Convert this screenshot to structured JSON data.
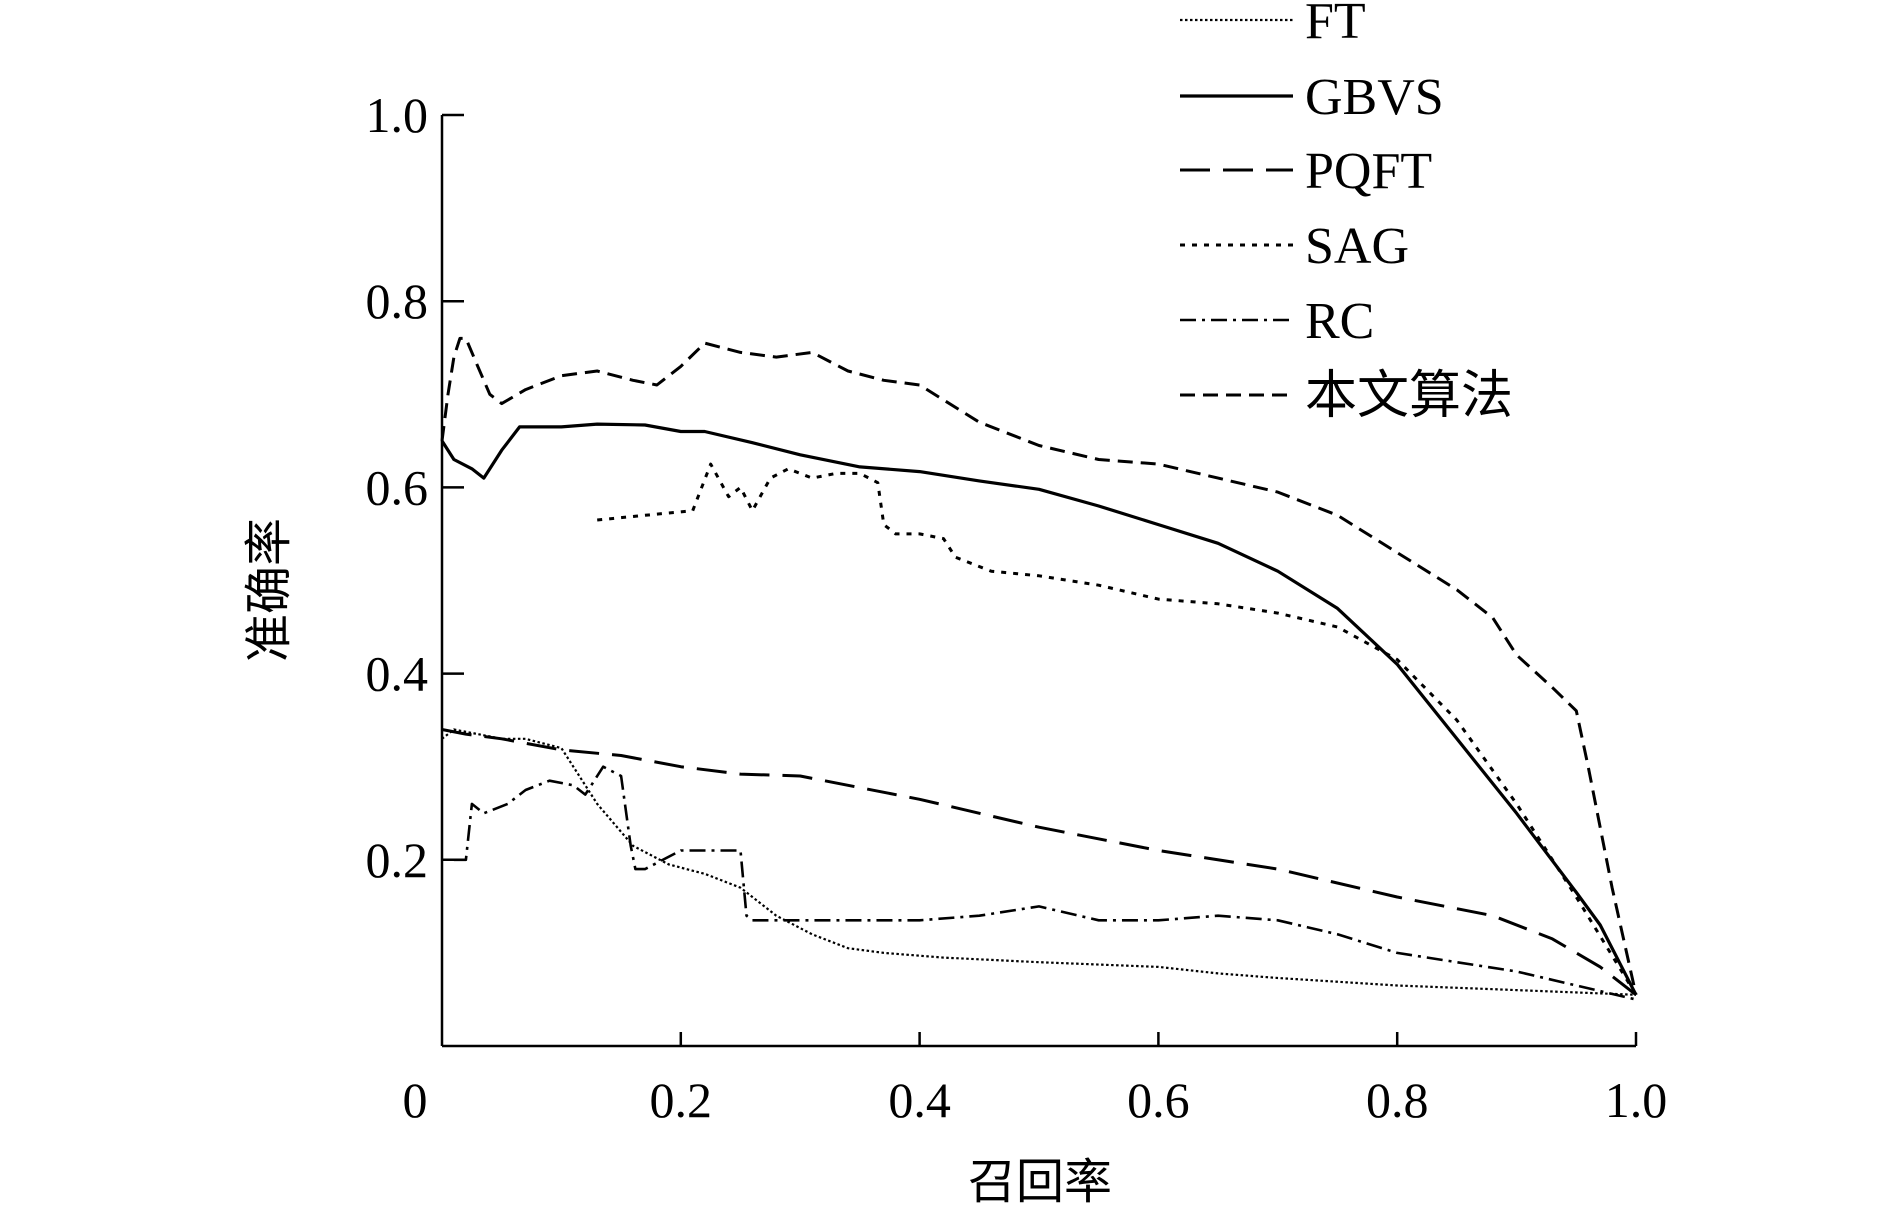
{
  "chart_data": {
    "type": "line",
    "title": "",
    "xlabel": "召回率",
    "ylabel": "准确率",
    "xlim": [
      0,
      1.0
    ],
    "ylim": [
      0,
      1.0
    ],
    "x_origin_label": "0",
    "x_ticks": [
      0.2,
      0.4,
      0.6,
      0.8,
      1.0
    ],
    "x_tick_labels": [
      "0.2",
      "0.4",
      "0.6",
      "0.8",
      "1.0"
    ],
    "y_ticks": [
      0.2,
      0.4,
      0.6,
      0.8,
      1.0
    ],
    "y_tick_labels": [
      "0.2",
      "0.4",
      "0.6",
      "0.8",
      "1.0"
    ],
    "grid": false,
    "legend_position": "top-right",
    "series": [
      {
        "name": "FT",
        "style": "fine-dotted",
        "x": [
          0.0,
          0.01,
          0.03,
          0.05,
          0.07,
          0.1,
          0.13,
          0.16,
          0.19,
          0.22,
          0.25,
          0.28,
          0.31,
          0.34,
          0.37,
          0.42,
          0.5,
          0.6,
          0.65,
          0.7,
          0.8,
          0.9,
          1.0
        ],
        "y": [
          0.33,
          0.34,
          0.335,
          0.33,
          0.33,
          0.32,
          0.26,
          0.215,
          0.195,
          0.185,
          0.17,
          0.14,
          0.12,
          0.105,
          0.1,
          0.095,
          0.09,
          0.085,
          0.078,
          0.073,
          0.065,
          0.06,
          0.055
        ]
      },
      {
        "name": "GBVS",
        "style": "solid",
        "x": [
          0.0,
          0.01,
          0.025,
          0.035,
          0.05,
          0.065,
          0.08,
          0.1,
          0.13,
          0.17,
          0.2,
          0.22,
          0.26,
          0.3,
          0.35,
          0.4,
          0.45,
          0.5,
          0.55,
          0.6,
          0.65,
          0.7,
          0.75,
          0.8,
          0.85,
          0.9,
          0.95,
          0.97,
          1.0
        ],
        "y": [
          0.65,
          0.63,
          0.62,
          0.61,
          0.64,
          0.665,
          0.665,
          0.665,
          0.668,
          0.667,
          0.66,
          0.66,
          0.648,
          0.635,
          0.622,
          0.617,
          0.607,
          0.598,
          0.58,
          0.56,
          0.54,
          0.51,
          0.47,
          0.41,
          0.33,
          0.25,
          0.165,
          0.13,
          0.055
        ]
      },
      {
        "name": "PQFT",
        "style": "long-dashed",
        "x": [
          0.0,
          0.02,
          0.05,
          0.1,
          0.15,
          0.2,
          0.25,
          0.3,
          0.4,
          0.5,
          0.6,
          0.7,
          0.8,
          0.88,
          0.93,
          0.97,
          1.0
        ],
        "y": [
          0.34,
          0.335,
          0.33,
          0.318,
          0.312,
          0.3,
          0.292,
          0.29,
          0.265,
          0.235,
          0.21,
          0.19,
          0.16,
          0.14,
          0.115,
          0.085,
          0.055
        ]
      },
      {
        "name": "SAG",
        "style": "dotted",
        "x": [
          0.13,
          0.17,
          0.21,
          0.225,
          0.24,
          0.25,
          0.26,
          0.275,
          0.29,
          0.31,
          0.33,
          0.35,
          0.365,
          0.37,
          0.38,
          0.4,
          0.42,
          0.43,
          0.44,
          0.46,
          0.5,
          0.55,
          0.6,
          0.65,
          0.7,
          0.75,
          0.8,
          0.85,
          0.9,
          0.95,
          1.0
        ],
        "y": [
          0.565,
          0.57,
          0.575,
          0.625,
          0.59,
          0.6,
          0.575,
          0.61,
          0.62,
          0.61,
          0.615,
          0.615,
          0.605,
          0.56,
          0.55,
          0.55,
          0.545,
          0.525,
          0.52,
          0.51,
          0.505,
          0.495,
          0.48,
          0.475,
          0.465,
          0.45,
          0.415,
          0.35,
          0.26,
          0.16,
          0.055
        ]
      },
      {
        "name": "RC",
        "style": "dash-dot",
        "x": [
          0.01,
          0.02,
          0.025,
          0.035,
          0.055,
          0.07,
          0.09,
          0.11,
          0.12,
          0.135,
          0.15,
          0.158,
          0.162,
          0.17,
          0.2,
          0.215,
          0.235,
          0.25,
          0.255,
          0.26,
          0.3,
          0.35,
          0.4,
          0.45,
          0.5,
          0.55,
          0.6,
          0.65,
          0.7,
          0.75,
          0.8,
          0.85,
          0.9,
          0.95,
          1.0
        ],
        "y": [
          0.2,
          0.2,
          0.26,
          0.25,
          0.26,
          0.275,
          0.285,
          0.28,
          0.27,
          0.3,
          0.29,
          0.215,
          0.19,
          0.19,
          0.21,
          0.21,
          0.21,
          0.21,
          0.14,
          0.135,
          0.135,
          0.135,
          0.135,
          0.14,
          0.15,
          0.135,
          0.135,
          0.14,
          0.135,
          0.12,
          0.1,
          0.09,
          0.08,
          0.065,
          0.05
        ]
      },
      {
        "name": "本文算法",
        "style": "dashed",
        "x": [
          0.0,
          0.005,
          0.01,
          0.015,
          0.02,
          0.03,
          0.04,
          0.05,
          0.07,
          0.1,
          0.13,
          0.16,
          0.18,
          0.2,
          0.22,
          0.25,
          0.28,
          0.31,
          0.34,
          0.37,
          0.4,
          0.45,
          0.5,
          0.55,
          0.6,
          0.65,
          0.7,
          0.75,
          0.8,
          0.85,
          0.88,
          0.9,
          0.93,
          0.95,
          0.96,
          0.98,
          1.0
        ],
        "y": [
          0.65,
          0.7,
          0.74,
          0.76,
          0.76,
          0.73,
          0.7,
          0.69,
          0.705,
          0.72,
          0.725,
          0.715,
          0.71,
          0.73,
          0.755,
          0.745,
          0.74,
          0.745,
          0.725,
          0.715,
          0.71,
          0.67,
          0.645,
          0.63,
          0.625,
          0.61,
          0.595,
          0.57,
          0.53,
          0.49,
          0.46,
          0.42,
          0.385,
          0.36,
          0.3,
          0.17,
          0.055
        ]
      }
    ]
  }
}
